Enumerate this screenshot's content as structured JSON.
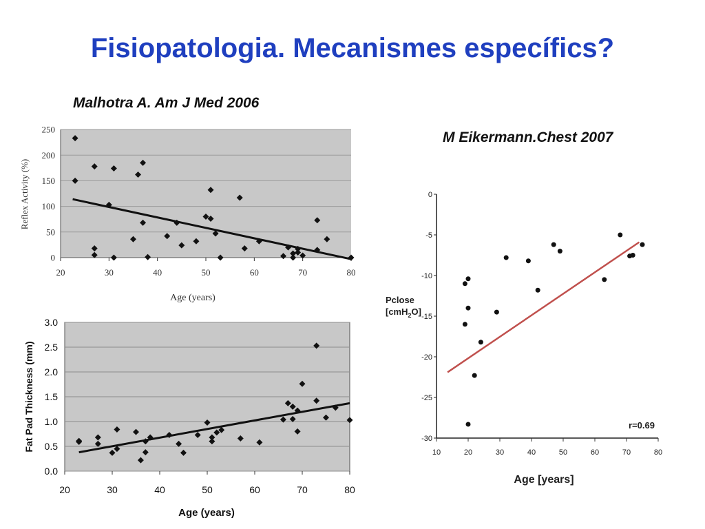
{
  "slide": {
    "title": "Fisiopatologia. Mecanismes específics?",
    "citation_left": "Malhotra A. Am J Med 2006",
    "citation_right": "M Eikermann.Chest 2007"
  },
  "colors": {
    "title": "#1f3fbf",
    "plot_bg": "#c8c8c8",
    "marker": "#111111",
    "trend_black": "#111111",
    "trend_red": "#c0504d"
  },
  "chart_data": [
    {
      "type": "scatter",
      "title": "",
      "xlabel": "Age (years)",
      "ylabel": "Reflex Activity (%)",
      "xlim": [
        20,
        80
      ],
      "ylim": [
        0,
        250
      ],
      "x_ticks": [
        20,
        30,
        40,
        50,
        60,
        70,
        80
      ],
      "y_ticks": [
        0,
        50,
        100,
        150,
        200,
        250
      ],
      "grid": true,
      "points": [
        [
          23,
          233
        ],
        [
          23,
          150
        ],
        [
          27,
          178
        ],
        [
          27,
          18
        ],
        [
          27,
          5
        ],
        [
          30,
          103
        ],
        [
          31,
          174
        ],
        [
          31,
          0
        ],
        [
          36,
          162
        ],
        [
          37,
          185
        ],
        [
          37,
          68
        ],
        [
          35,
          36
        ],
        [
          38,
          1
        ],
        [
          42,
          42
        ],
        [
          44,
          68
        ],
        [
          45,
          24
        ],
        [
          48,
          32
        ],
        [
          50,
          80
        ],
        [
          51,
          132
        ],
        [
          51,
          76
        ],
        [
          52,
          47
        ],
        [
          53,
          0
        ],
        [
          57,
          117
        ],
        [
          58,
          18
        ],
        [
          61,
          32
        ],
        [
          66,
          3
        ],
        [
          67,
          20
        ],
        [
          68,
          8
        ],
        [
          68,
          0
        ],
        [
          69,
          17
        ],
        [
          69,
          10
        ],
        [
          70,
          4
        ],
        [
          73,
          73
        ],
        [
          73,
          15
        ],
        [
          75,
          36
        ],
        [
          80,
          0
        ]
      ],
      "trendline": [
        [
          22.5,
          114
        ],
        [
          80,
          -3
        ]
      ]
    },
    {
      "type": "scatter",
      "title": "",
      "xlabel": "Age (years)",
      "ylabel": "Fat Pad Thickness (mm)",
      "xlim": [
        20,
        80
      ],
      "ylim": [
        0,
        3
      ],
      "x_ticks": [
        20,
        30,
        40,
        50,
        60,
        70,
        80
      ],
      "y_ticks": [
        "0.0",
        "0.5",
        "1.0",
        "1.5",
        "2.0",
        "2.5",
        "3.0"
      ],
      "grid": true,
      "points": [
        [
          23,
          0.61
        ],
        [
          23,
          0.59
        ],
        [
          27,
          0.68
        ],
        [
          27,
          0.55
        ],
        [
          30,
          0.37
        ],
        [
          31,
          0.84
        ],
        [
          31,
          0.45
        ],
        [
          35,
          0.79
        ],
        [
          36,
          0.22
        ],
        [
          37,
          0.38
        ],
        [
          37,
          0.6
        ],
        [
          38,
          0.68
        ],
        [
          42,
          0.73
        ],
        [
          44,
          0.55
        ],
        [
          45,
          0.37
        ],
        [
          48,
          0.73
        ],
        [
          50,
          0.98
        ],
        [
          51,
          0.68
        ],
        [
          51,
          0.6
        ],
        [
          52,
          0.78
        ],
        [
          53,
          0.83
        ],
        [
          57,
          0.66
        ],
        [
          61,
          0.58
        ],
        [
          66,
          1.04
        ],
        [
          67,
          1.37
        ],
        [
          68,
          1.3
        ],
        [
          68,
          1.05
        ],
        [
          69,
          1.22
        ],
        [
          69,
          0.8
        ],
        [
          70,
          1.76
        ],
        [
          73,
          2.53
        ],
        [
          73,
          1.42
        ],
        [
          75,
          1.08
        ],
        [
          77,
          1.28
        ],
        [
          80,
          1.03
        ]
      ],
      "trendline": [
        [
          23,
          0.38
        ],
        [
          80,
          1.37
        ]
      ]
    },
    {
      "type": "scatter",
      "title": "",
      "xlabel": "Age [years]",
      "ylabel": "Pclose [cmH2O]",
      "ylabel_parts": {
        "main": "Pclose",
        "line2_prefix": "[cmH",
        "sub": "2",
        "line2_suffix": "O]"
      },
      "xlim": [
        10,
        80
      ],
      "ylim": [
        -30,
        0
      ],
      "x_ticks": [
        10,
        20,
        30,
        40,
        50,
        60,
        70,
        80
      ],
      "y_ticks": [
        0,
        -5,
        -10,
        -15,
        -20,
        -25,
        -30
      ],
      "grid": false,
      "annotation": "r=0.69",
      "points": [
        [
          19,
          -11
        ],
        [
          20,
          -10.4
        ],
        [
          20,
          -14
        ],
        [
          19,
          -16
        ],
        [
          20,
          -28.3
        ],
        [
          22,
          -22.3
        ],
        [
          24,
          -18.2
        ],
        [
          29,
          -14.5
        ],
        [
          32,
          -7.8
        ],
        [
          39,
          -8.2
        ],
        [
          42,
          -11.8
        ],
        [
          47,
          -6.2
        ],
        [
          49,
          -7
        ],
        [
          63,
          -10.5
        ],
        [
          68,
          -5
        ],
        [
          71,
          -7.6
        ],
        [
          72,
          -7.5
        ],
        [
          75,
          -6.2
        ]
      ],
      "trendline": [
        [
          13.5,
          -21.9
        ],
        [
          74,
          -5.9
        ]
      ]
    }
  ]
}
